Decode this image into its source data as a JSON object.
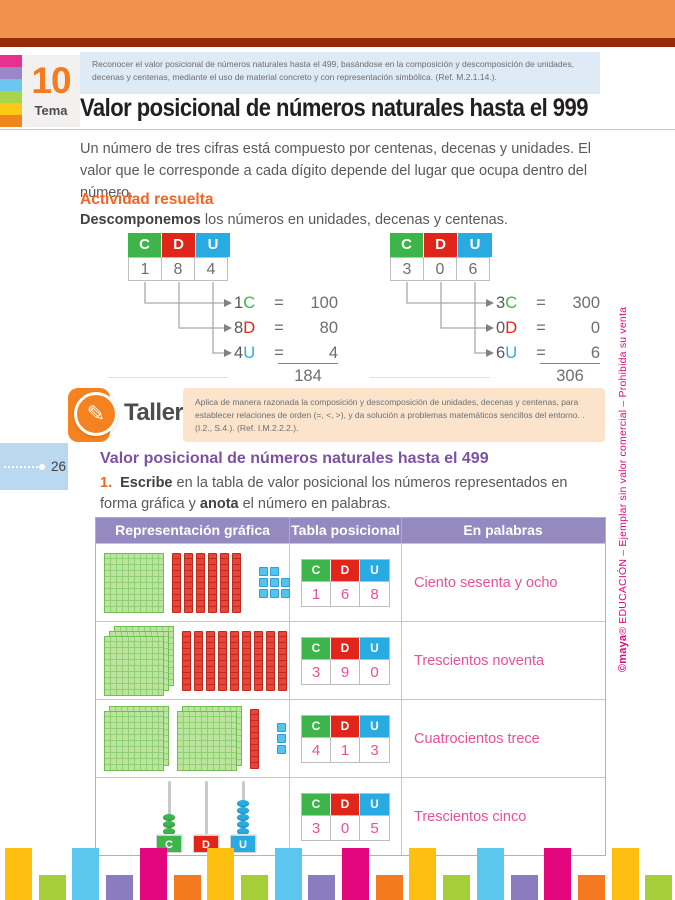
{
  "page": {
    "tema_number": "10",
    "tema_label": "Tema",
    "objective": "Reconocer el valor posicional de números naturales hasta el 499, basándose en la composición y descomposición de unidades, decenas y centenas, mediante el uso de material concreto y con representación simbólica. (Ref. M.2.1.14.).",
    "title": "Valor posicional de números naturales hasta el 999",
    "intro": "Un número de tres cifras está compuesto por centenas, decenas y unidades. El valor que le corresponde a cada dígito depende del lugar que ocupa dentro del número.",
    "page_number": "26",
    "side_note_brand": "©maya",
    "side_note_rest": "® EDUCACIÓN – Ejemplar sin valor comercial – Prohibida su venta"
  },
  "activity": {
    "heading": "Actividad resuelta",
    "lead_bold": "Descomponemos",
    "lead_rest": " los números en unidades, decenas y centenas.",
    "equals": "=",
    "place_headers": [
      {
        "label": "C",
        "color": "#3DB54A"
      },
      {
        "label": "D",
        "color": "#E1251B"
      },
      {
        "label": "U",
        "color": "#29ABE2"
      }
    ],
    "examples": [
      {
        "digits": [
          "1",
          "8",
          "4"
        ],
        "rows": [
          {
            "digit": "1",
            "place": "C",
            "value": "100"
          },
          {
            "digit": "8",
            "place": "D",
            "value": "80"
          },
          {
            "digit": "4",
            "place": "U",
            "value": "4"
          }
        ],
        "total": "184"
      },
      {
        "digits": [
          "3",
          "0",
          "6"
        ],
        "rows": [
          {
            "digit": "3",
            "place": "C",
            "value": "300"
          },
          {
            "digit": "0",
            "place": "D",
            "value": "0"
          },
          {
            "digit": "6",
            "place": "U",
            "value": "6"
          }
        ],
        "total": "306"
      }
    ]
  },
  "taller": {
    "label": "Taller",
    "text": "Aplica de manera razonada la composición y descomposición de unidades, decenas y centenas, para establecer relaciones de orden (=, <, >), y da solución a problemas matemáticos sencillos del entorno. . (I.2., S.4.). (Ref. I.M.2.2.2.)."
  },
  "exercise": {
    "heading": "Valor posicional de números naturales hasta el 499",
    "item_number": "1.",
    "instruction_parts": [
      {
        "text": "Escribe",
        "bold": true
      },
      {
        "text": " en la tabla de valor posicional los números representados en forma gráfica y ",
        "bold": false
      },
      {
        "text": "anota",
        "bold": true
      },
      {
        "text": " el número en palabras.",
        "bold": false
      }
    ],
    "table": {
      "headers": [
        "Representación gráfica",
        "Tabla posicional",
        "En palabras"
      ],
      "rows": [
        {
          "graphic": {
            "type": "blocks",
            "flats": [
              1
            ],
            "rods": 6,
            "cubes": [
              2,
              3,
              3
            ]
          },
          "cdu": [
            "1",
            "6",
            "8"
          ],
          "words": "Ciento sesenta y ocho"
        },
        {
          "graphic": {
            "type": "blocks",
            "flats": [
              3
            ],
            "rods": 9,
            "cubes": []
          },
          "cdu": [
            "3",
            "9",
            "0"
          ],
          "words": "Trescientos noventa"
        },
        {
          "graphic": {
            "type": "blocks",
            "flats": [
              2,
              2
            ],
            "rods": 1,
            "cubes": [
              1,
              1,
              1
            ]
          },
          "cdu": [
            "4",
            "1",
            "3"
          ],
          "words": "Cuatrocientos trece"
        },
        {
          "graphic": {
            "type": "abacus",
            "beads": [
              3,
              0,
              5
            ]
          },
          "cdu": [
            "3",
            "0",
            "5"
          ],
          "words": "Trescientos cinco"
        }
      ]
    }
  },
  "icons": {
    "pencil": "✎"
  },
  "colors": {
    "accent_orange": "#F26522",
    "heading_purple": "#7C51A1",
    "answer_pink": "#E8509A",
    "side_note_pink": "#E2077D",
    "stripes": [
      "#E6318E",
      "#9B86C9",
      "#6CC7F0",
      "#A8D54A",
      "#FDC816",
      "#F08519"
    ],
    "bar_cycle": [
      "#FDC010",
      "#A6CE39",
      "#5BC6EE",
      "#8B7CC0",
      "#E2077D",
      "#F4791F"
    ]
  }
}
